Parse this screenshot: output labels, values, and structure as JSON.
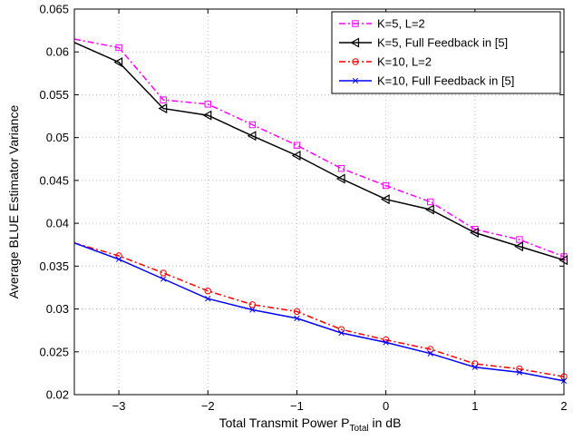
{
  "chart_data": {
    "type": "line",
    "title": "",
    "xlabel_prefix": "Total Transmit Power P",
    "xlabel_subscript": "Total",
    "xlabel_suffix": " in dB",
    "ylabel": "Average BLUE Estimator Variance",
    "xlim": [
      -3.5,
      2
    ],
    "ylim": [
      0.02,
      0.065
    ],
    "xticks": [
      -3,
      -2,
      -1,
      0,
      1,
      2
    ],
    "xtick_labels": [
      "−3",
      "−2",
      "−1",
      "0",
      "1",
      "2"
    ],
    "yticks": [
      0.02,
      0.025,
      0.03,
      0.035,
      0.04,
      0.045,
      0.05,
      0.055,
      0.06,
      0.065
    ],
    "ytick_labels": [
      "0.02",
      "0.025",
      "0.03",
      "0.035",
      "0.04",
      "0.045",
      "0.05",
      "0.055",
      "0.06",
      "0.065"
    ],
    "grid": true,
    "legend_position": "top-right",
    "x": [
      -3.5,
      -3,
      -2.5,
      -2,
      -1.5,
      -1,
      -0.5,
      0,
      0.5,
      1,
      1.5,
      2
    ],
    "series": [
      {
        "name": "K=5, L=2",
        "color": "#ff00ff",
        "dash": "dashdot",
        "marker": "square",
        "values": [
          0.0615,
          0.0605,
          0.0544,
          0.0539,
          0.0515,
          0.0491,
          0.0464,
          0.0444,
          0.0425,
          0.0393,
          0.0381,
          0.0361
        ]
      },
      {
        "name": "K=5, Full Feedback in [5]",
        "color": "#000000",
        "dash": "solid",
        "marker": "triangle-left",
        "values": [
          0.0611,
          0.0588,
          0.0534,
          0.0526,
          0.0502,
          0.0479,
          0.0452,
          0.0428,
          0.0416,
          0.0389,
          0.0373,
          0.0357
        ]
      },
      {
        "name": "K=10, L=2",
        "color": "#ff0000",
        "dash": "dashdot",
        "marker": "circle",
        "values": [
          0.0377,
          0.0362,
          0.0342,
          0.0321,
          0.0305,
          0.0297,
          0.0276,
          0.0264,
          0.0253,
          0.0236,
          0.023,
          0.0221
        ]
      },
      {
        "name": "K=10, Full Feedback in [5]",
        "color": "#0000ff",
        "dash": "solid",
        "marker": "x",
        "values": [
          0.0377,
          0.0358,
          0.0335,
          0.0312,
          0.0299,
          0.0289,
          0.0272,
          0.0261,
          0.0248,
          0.0232,
          0.0226,
          0.0216
        ]
      }
    ]
  }
}
